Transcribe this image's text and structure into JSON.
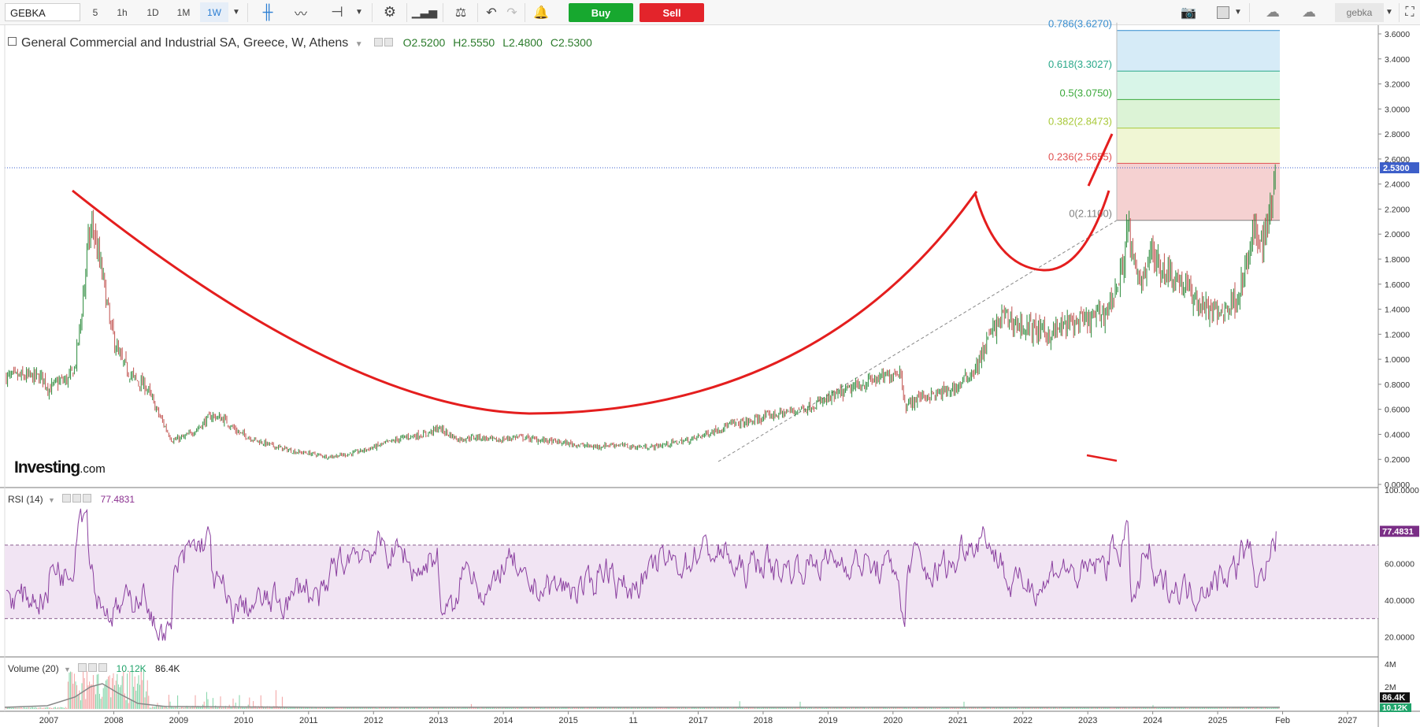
{
  "toolbar": {
    "symbol": "GEBKA",
    "intervals": [
      "5",
      "1h",
      "1D",
      "1M",
      "1W"
    ],
    "selected_interval": "1W",
    "buy_label": "Buy",
    "sell_label": "Sell",
    "user_label": "gebka",
    "accent": "#2d7fd3",
    "buy_color": "#17a82f",
    "sell_color": "#e3242b"
  },
  "legend": {
    "title": "General Commercial and Industrial SA, Greece, W, Athens",
    "open": "O2.5200",
    "high": "H2.5550",
    "low": "L2.4800",
    "close": "C2.5300"
  },
  "brand": {
    "name": "Investing",
    "suffix": ".com"
  },
  "chart_data": [
    {
      "type": "candlestick",
      "name": "price",
      "x_ticks": [
        "2007",
        "2008",
        "2009",
        "2010",
        "2011",
        "2012",
        "2013",
        "2014",
        "2015",
        "11",
        "2017",
        "2018",
        "2019",
        "2020",
        "2021",
        "2022",
        "2023",
        "2024",
        "2025",
        "Feb",
        "2027"
      ],
      "y_ticks": [
        "3.6000",
        "3.4000",
        "3.2000",
        "3.0000",
        "2.8000",
        "2.6000",
        "2.4000",
        "2.2000",
        "2.0000",
        "1.8000",
        "1.6000",
        "1.4000",
        "1.2000",
        "1.0000",
        "0.8000",
        "0.6000",
        "0.4000",
        "0.2000",
        "0.0000"
      ],
      "ylim": [
        0,
        3.65
      ],
      "last_price": 2.53,
      "last_price_label": "2.5300",
      "close_path": [
        [
          "2006.9",
          0.86
        ],
        [
          "2007.0",
          0.76
        ],
        [
          "2007.15",
          0.82
        ],
        [
          "2007.3",
          0.84
        ],
        [
          "2007.4",
          0.93
        ],
        [
          "2007.5",
          1.35
        ],
        [
          "2007.6",
          1.9
        ],
        [
          "2007.68",
          2.08
        ],
        [
          "2007.75",
          1.85
        ],
        [
          "2007.85",
          1.6
        ],
        [
          "2007.95",
          1.25
        ],
        [
          "2008.1",
          1.0
        ],
        [
          "2008.3",
          0.85
        ],
        [
          "2008.5",
          0.78
        ],
        [
          "2008.7",
          0.55
        ],
        [
          "2008.9",
          0.35
        ],
        [
          "2009.1",
          0.38
        ],
        [
          "2009.3",
          0.45
        ],
        [
          "2009.5",
          0.55
        ],
        [
          "2009.7",
          0.52
        ],
        [
          "2009.9",
          0.42
        ],
        [
          "2010.2",
          0.35
        ],
        [
          "2010.5",
          0.3
        ],
        [
          "2010.8",
          0.26
        ],
        [
          "2011.0",
          0.25
        ],
        [
          "2011.3",
          0.22
        ],
        [
          "2011.6",
          0.24
        ],
        [
          "2011.9",
          0.28
        ],
        [
          "2012.2",
          0.33
        ],
        [
          "2012.5",
          0.38
        ],
        [
          "2012.8",
          0.4
        ],
        [
          "2013.0",
          0.45
        ],
        [
          "2013.3",
          0.36
        ],
        [
          "2013.6",
          0.38
        ],
        [
          "2013.9",
          0.35
        ],
        [
          "2014.2",
          0.38
        ],
        [
          "2014.5",
          0.36
        ],
        [
          "2014.8",
          0.34
        ],
        [
          "2015.1",
          0.32
        ],
        [
          "2015.4",
          0.3
        ],
        [
          "2015.7",
          0.32
        ],
        [
          "2016.0",
          0.3
        ],
        [
          "2016.3",
          0.3
        ],
        [
          "2016.6",
          0.33
        ],
        [
          "2016.9",
          0.36
        ],
        [
          "2017.2",
          0.42
        ],
        [
          "2017.5",
          0.48
        ],
        [
          "2017.8",
          0.5
        ],
        [
          "2018.1",
          0.55
        ],
        [
          "2018.4",
          0.58
        ],
        [
          "2018.7",
          0.62
        ],
        [
          "2019.0",
          0.68
        ],
        [
          "2019.3",
          0.75
        ],
        [
          "2019.6",
          0.82
        ],
        [
          "2019.9",
          0.86
        ],
        [
          "2020.1",
          0.92
        ],
        [
          "2020.2",
          0.62
        ],
        [
          "2020.4",
          0.7
        ],
        [
          "2020.7",
          0.72
        ],
        [
          "2021.0",
          0.78
        ],
        [
          "2021.3",
          0.95
        ],
        [
          "2021.5",
          1.2
        ],
        [
          "2021.7",
          1.35
        ],
        [
          "2021.9",
          1.28
        ],
        [
          "2022.1",
          1.25
        ],
        [
          "2022.4",
          1.2
        ],
        [
          "2022.7",
          1.28
        ],
        [
          "2023.0",
          1.3
        ],
        [
          "2023.3",
          1.4
        ],
        [
          "2023.5",
          1.65
        ],
        [
          "2023.62",
          2.08
        ],
        [
          "2023.7",
          1.75
        ],
        [
          "2023.8",
          1.6
        ],
        [
          "2023.95",
          1.85
        ],
        [
          "2024.1",
          1.75
        ],
        [
          "2024.3",
          1.68
        ],
        [
          "2024.5",
          1.58
        ],
        [
          "2024.7",
          1.45
        ],
        [
          "2024.85",
          1.4
        ],
        [
          "2025.0",
          1.36
        ],
        [
          "2025.15",
          1.42
        ],
        [
          "2025.3",
          1.5
        ],
        [
          "2025.45",
          1.75
        ],
        [
          "2025.55",
          2.0
        ],
        [
          "2025.68",
          1.95
        ],
        [
          "2025.78",
          2.1
        ],
        [
          "2025.87",
          2.45
        ],
        [
          "2025.9",
          2.53
        ]
      ],
      "fibonacci": [
        {
          "ratio": "0",
          "value": 2.11,
          "label": "0(2.1100)",
          "color": "#808080"
        },
        {
          "ratio": "0.236",
          "value": 2.5655,
          "label": "0.236(2.5655)",
          "color": "#e05050"
        },
        {
          "ratio": "0.382",
          "value": 2.8473,
          "label": "0.382(2.8473)",
          "color": "#a9c93a"
        },
        {
          "ratio": "0.5",
          "value": 3.075,
          "label": "0.5(3.0750)",
          "color": "#3aa83a"
        },
        {
          "ratio": "0.618",
          "value": 3.3027,
          "label": "0.618(3.3027)",
          "color": "#2aa88a"
        },
        {
          "ratio": "0.786",
          "value": 3.627,
          "label": "0.786(3.6270)",
          "color": "#3a8fd0"
        }
      ]
    },
    {
      "type": "line",
      "name": "RSI (14)",
      "legend_label": "RSI (14)",
      "current_value": 77.4831,
      "current_label": "77.4831",
      "y_ticks": [
        "100.0000",
        "60.0000",
        "40.0000",
        "20.0000"
      ],
      "ylim": [
        10,
        100
      ],
      "band": [
        30,
        70
      ],
      "color": "#8a3f9f"
    },
    {
      "type": "bar",
      "name": "Volume (20)",
      "legend_label": "Volume (20)",
      "last_value": "10.12K",
      "ma_value": "86.4K",
      "y_ticks": [
        "4M",
        "2M"
      ],
      "ma_label": "86.4K",
      "last_label": "10.12K"
    }
  ]
}
